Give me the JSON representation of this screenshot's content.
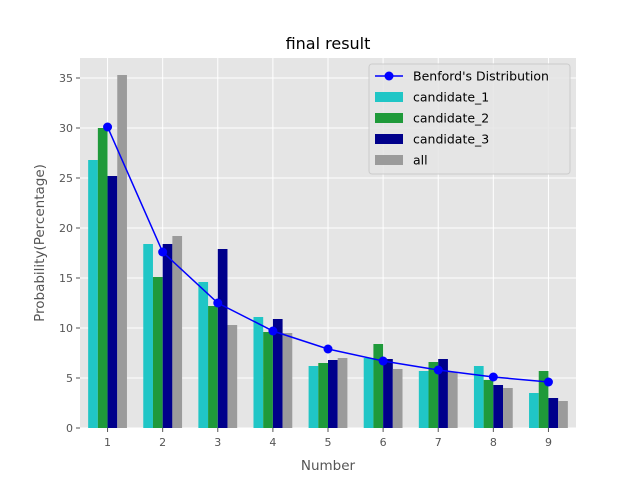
{
  "chart_data": {
    "type": "bar",
    "title": "final result",
    "xlabel": "Number",
    "ylabel": "Probability(Percentage)",
    "ylim": [
      0,
      37
    ],
    "yticks": [
      0,
      5,
      10,
      15,
      20,
      25,
      30,
      35
    ],
    "categories": [
      1,
      2,
      3,
      4,
      5,
      6,
      7,
      8,
      9
    ],
    "grid": true,
    "legend_position": "top-right",
    "series": [
      {
        "name": "candidate_1",
        "type": "bar",
        "color": "#20c6c6",
        "values": [
          26.8,
          18.4,
          14.6,
          11.1,
          6.2,
          7.0,
          5.7,
          6.2,
          3.5
        ]
      },
      {
        "name": "candidate_2",
        "type": "bar",
        "color": "#1f9a3a",
        "values": [
          30.0,
          15.1,
          12.2,
          9.6,
          6.5,
          8.4,
          6.6,
          4.8,
          5.7
        ]
      },
      {
        "name": "candidate_3",
        "type": "bar",
        "color": "#00008b",
        "values": [
          25.2,
          18.4,
          17.9,
          10.9,
          6.8,
          6.9,
          6.9,
          4.3,
          3.0
        ]
      },
      {
        "name": "all",
        "type": "bar",
        "color": "#9b9b9b",
        "values": [
          35.3,
          19.2,
          10.3,
          9.5,
          7.0,
          5.9,
          5.6,
          4.0,
          2.7
        ]
      },
      {
        "name": "Benford's Distribution",
        "type": "line",
        "color": "#0000ff",
        "values": [
          30.1,
          17.6,
          12.5,
          9.7,
          7.9,
          6.7,
          5.8,
          5.1,
          4.6
        ]
      }
    ]
  }
}
